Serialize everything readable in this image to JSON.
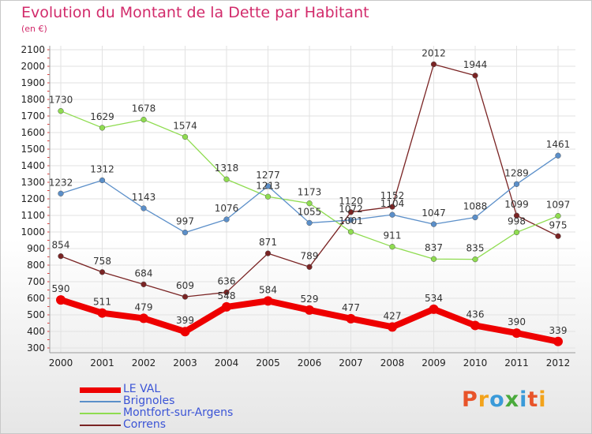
{
  "header": {
    "title": "Evolution du Montant de la Dette par Habitant",
    "subtitle": "(en €)"
  },
  "logo": {
    "text": "Proxiti",
    "colors": [
      "#e8542a",
      "#f3a31b",
      "#3a9ad9",
      "#4aaa3c",
      "#3a9ad9",
      "#e8542a",
      "#f3a31b"
    ]
  },
  "chart_data": {
    "type": "line",
    "title": "Evolution du Montant de la Dette par Habitant",
    "subtitle": "(en €)",
    "x": [
      "2000",
      "2001",
      "2002",
      "2003",
      "2004",
      "2005",
      "2006",
      "2007",
      "2008",
      "2009",
      "2010",
      "2011",
      "2012"
    ],
    "ylim": [
      300,
      2100
    ],
    "yticks": [
      300,
      400,
      500,
      600,
      700,
      800,
      900,
      1000,
      1100,
      1200,
      1300,
      1400,
      1500,
      1600,
      1700,
      1800,
      1900,
      2000,
      2100
    ],
    "grid": true,
    "legend_position": "bottom-left",
    "series": [
      {
        "name": "LE VAL",
        "color": "#ee0000",
        "emphasis": true,
        "values": [
          590,
          511,
          479,
          399,
          548,
          584,
          529,
          477,
          427,
          534,
          436,
          390,
          339
        ]
      },
      {
        "name": "Brignoles",
        "color": "#5b8fc9",
        "values": [
          1232,
          1312,
          1143,
          997,
          1076,
          1277,
          1055,
          1072,
          1104,
          1047,
          1088,
          1289,
          1461
        ]
      },
      {
        "name": "Montfort-sur-Argens",
        "color": "#8fdc50",
        "values": [
          1730,
          1629,
          1678,
          1574,
          1318,
          1213,
          1173,
          1001,
          911,
          837,
          835,
          998,
          1097
        ]
      },
      {
        "name": "Correns",
        "color": "#7a2424",
        "values": [
          854,
          758,
          684,
          609,
          636,
          871,
          789,
          1120,
          1152,
          2012,
          1944,
          1099,
          975
        ]
      }
    ]
  }
}
